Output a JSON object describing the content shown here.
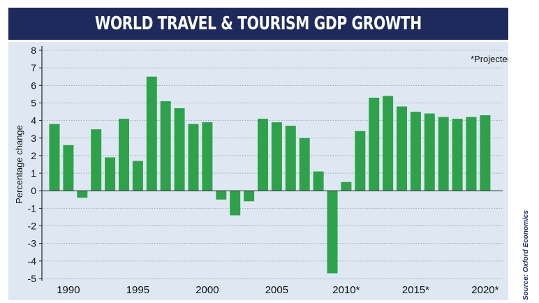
{
  "header": {
    "title": "WORLD TRAVEL & TOURISM GDP GROWTH"
  },
  "source_note": "Source: Oxford Economics",
  "colors": {
    "bar": "#2ea24a",
    "title_bg": "#1f2a5c",
    "plot_bg": "#dfe8f2"
  },
  "chart_data": {
    "type": "bar",
    "title": "WORLD TRAVEL & TOURISM GDP GROWTH",
    "ylabel": "Percentage change",
    "xlabel": "",
    "annotation": "*Projected",
    "ylim": [
      -5,
      8
    ],
    "yticks": [
      "8",
      "7",
      "6",
      "5",
      "4",
      "3",
      "2",
      "1",
      "0",
      "-1",
      "-2",
      "-3",
      "-4",
      "-5"
    ],
    "grid": true,
    "x": [
      1989,
      1990,
      1991,
      1992,
      1993,
      1994,
      1995,
      1996,
      1997,
      1998,
      1999,
      2000,
      2001,
      2002,
      2003,
      2004,
      2005,
      2006,
      2007,
      2008,
      2009,
      2010,
      2011,
      2012,
      2013,
      2014,
      2015,
      2016,
      2017,
      2018,
      2019,
      2020
    ],
    "values": [
      3.8,
      2.6,
      -0.4,
      3.5,
      1.9,
      4.1,
      1.7,
      6.5,
      5.1,
      4.7,
      3.8,
      3.9,
      -0.5,
      -1.4,
      -0.6,
      4.1,
      3.9,
      3.7,
      3.0,
      1.1,
      -4.7,
      0.5,
      3.4,
      5.3,
      5.4,
      4.8,
      4.5,
      4.4,
      4.2,
      4.1,
      4.2,
      4.3
    ],
    "xtick_labels": [
      {
        "year": 1990,
        "label": "1990"
      },
      {
        "year": 1995,
        "label": "1995"
      },
      {
        "year": 2000,
        "label": "2000"
      },
      {
        "year": 2005,
        "label": "2005"
      },
      {
        "year": 2010,
        "label": "2010*"
      },
      {
        "year": 2015,
        "label": "2015*"
      },
      {
        "year": 2020,
        "label": "2020*"
      }
    ]
  }
}
